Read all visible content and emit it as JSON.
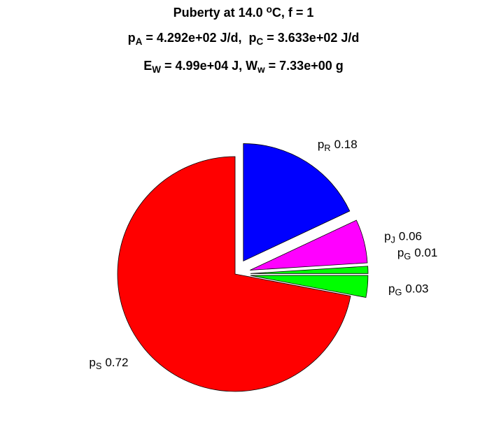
{
  "chart_data": {
    "type": "pie",
    "title": [
      [
        {
          "text": "Puberty at 14.0 "
        },
        {
          "text": "o",
          "shift": "sup"
        },
        {
          "text": "C, f = 1"
        }
      ],
      [
        {
          "text": "p"
        },
        {
          "text": "A",
          "shift": "sub"
        },
        {
          "text": " = 4.292e+02 J/d,  p"
        },
        {
          "text": "C",
          "shift": "sub"
        },
        {
          "text": " = 3.633e+02 J/d"
        }
      ],
      [
        {
          "text": "E"
        },
        {
          "text": "W",
          "shift": "sub"
        },
        {
          "text": " = 4.99e+04 J, W"
        },
        {
          "text": "w",
          "shift": "sub"
        },
        {
          "text": " = 7.33e+00 g"
        }
      ]
    ],
    "labels": [
      [
        {
          "text": "p"
        },
        {
          "text": "R",
          "shift": "sub"
        }
      ],
      [
        {
          "text": "p"
        },
        {
          "text": "J",
          "shift": "sub"
        }
      ],
      [
        {
          "text": "p"
        },
        {
          "text": "G",
          "shift": "sub"
        }
      ],
      [
        {
          "text": "p"
        },
        {
          "text": "G",
          "shift": "sub"
        }
      ],
      [
        {
          "text": "p"
        },
        {
          "text": "S",
          "shift": "sub"
        }
      ]
    ],
    "values": [
      0.18,
      0.06,
      0.01,
      0.03,
      0.72
    ],
    "colors": [
      "#0000ff",
      "#ff00ff",
      "#00ff00",
      "#00ff00",
      "#ff0000"
    ],
    "explode": [
      1,
      1,
      1,
      1,
      0
    ]
  }
}
